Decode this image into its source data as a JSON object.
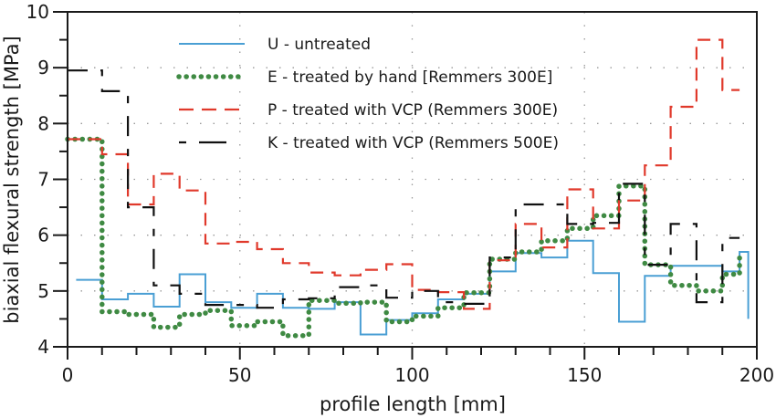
{
  "chart_data": {
    "type": "line",
    "subtype": "step",
    "title": "",
    "xlabel": "profile length [mm]",
    "ylabel": "biaxial flexural strength [MPa]",
    "xlim": [
      0,
      200
    ],
    "ylim": [
      4,
      10
    ],
    "xticks": [
      0,
      50,
      100,
      150,
      200
    ],
    "yticks": [
      4,
      5,
      6,
      7,
      8,
      9,
      10
    ],
    "x_minor_step": 10,
    "y_minor_step": 0.5,
    "grid": "dotted",
    "legend_position": "top-center",
    "series": [
      {
        "key": "U",
        "name": "U - untreated",
        "color": "#4a9fd4",
        "style": "solid",
        "x": [
          2.5,
          10,
          17.5,
          25,
          32.5,
          40,
          47.5,
          55,
          62.5,
          70,
          77.5,
          85,
          92.5,
          100,
          107.5,
          115,
          122.5,
          130,
          137.5,
          145,
          152.5,
          160,
          167.5,
          175,
          182.5,
          190,
          195,
          197.5
        ],
        "values": [
          5.2,
          4.85,
          4.95,
          4.72,
          5.3,
          4.8,
          4.7,
          4.95,
          4.7,
          4.68,
          4.8,
          4.22,
          4.48,
          4.6,
          4.85,
          4.95,
          5.35,
          5.68,
          5.6,
          5.9,
          5.32,
          4.45,
          5.27,
          5.45,
          5.45,
          5.35,
          5.7,
          4.5
        ]
      },
      {
        "key": "E",
        "name": "E - treated by hand [Remmers 300E]",
        "color": "#3f8a43",
        "style": "dotted",
        "x": [
          0,
          10,
          17.5,
          25,
          32.5,
          40,
          47.5,
          55,
          62.5,
          70,
          77.5,
          85,
          92.5,
          100,
          107.5,
          115,
          122.5,
          130,
          137.5,
          145,
          152.5,
          160,
          167.5,
          175,
          182.5,
          190,
          195
        ],
        "values": [
          7.72,
          4.63,
          4.58,
          4.35,
          4.58,
          4.65,
          4.38,
          4.45,
          4.2,
          4.83,
          4.78,
          4.8,
          4.45,
          4.55,
          4.7,
          4.97,
          5.57,
          5.7,
          5.9,
          6.12,
          6.35,
          6.88,
          5.47,
          5.1,
          5.0,
          5.3,
          5.65
        ]
      },
      {
        "key": "P",
        "name": "P - treated with VCP (Remmers 300E)",
        "color": "#e0392b",
        "style": "dashed",
        "x": [
          0,
          10,
          17.5,
          25,
          32.5,
          40,
          47.5,
          55,
          62.5,
          70,
          77.5,
          85,
          92.5,
          100,
          107.5,
          115,
          122.5,
          130,
          137.5,
          145,
          152.5,
          160,
          167.5,
          175,
          182.5,
          190,
          195
        ],
        "values": [
          7.72,
          7.45,
          6.55,
          7.1,
          6.8,
          5.85,
          5.88,
          5.75,
          5.5,
          5.33,
          5.28,
          5.38,
          5.48,
          5.02,
          4.98,
          4.68,
          5.55,
          6.2,
          5.78,
          6.82,
          6.12,
          6.62,
          7.25,
          8.3,
          9.5,
          8.6,
          8.6
        ]
      },
      {
        "key": "K",
        "name": "K - treated with VCP (Remmers 500E)",
        "color": "#111111",
        "style": "longdash",
        "x": [
          0,
          10,
          17.5,
          25,
          32.5,
          40,
          47.5,
          55,
          62.5,
          70,
          77.5,
          85,
          92.5,
          100,
          107.5,
          115,
          122.5,
          130,
          137.5,
          145,
          152.5,
          160,
          167.5,
          175,
          182.5,
          190,
          195
        ],
        "values": [
          8.95,
          8.58,
          6.5,
          5.1,
          4.95,
          4.75,
          4.75,
          4.7,
          4.85,
          4.87,
          5.07,
          5.1,
          4.88,
          5.0,
          4.8,
          4.77,
          5.6,
          6.55,
          6.55,
          6.2,
          6.22,
          6.92,
          5.47,
          6.2,
          4.8,
          5.95,
          5.95
        ]
      }
    ]
  }
}
